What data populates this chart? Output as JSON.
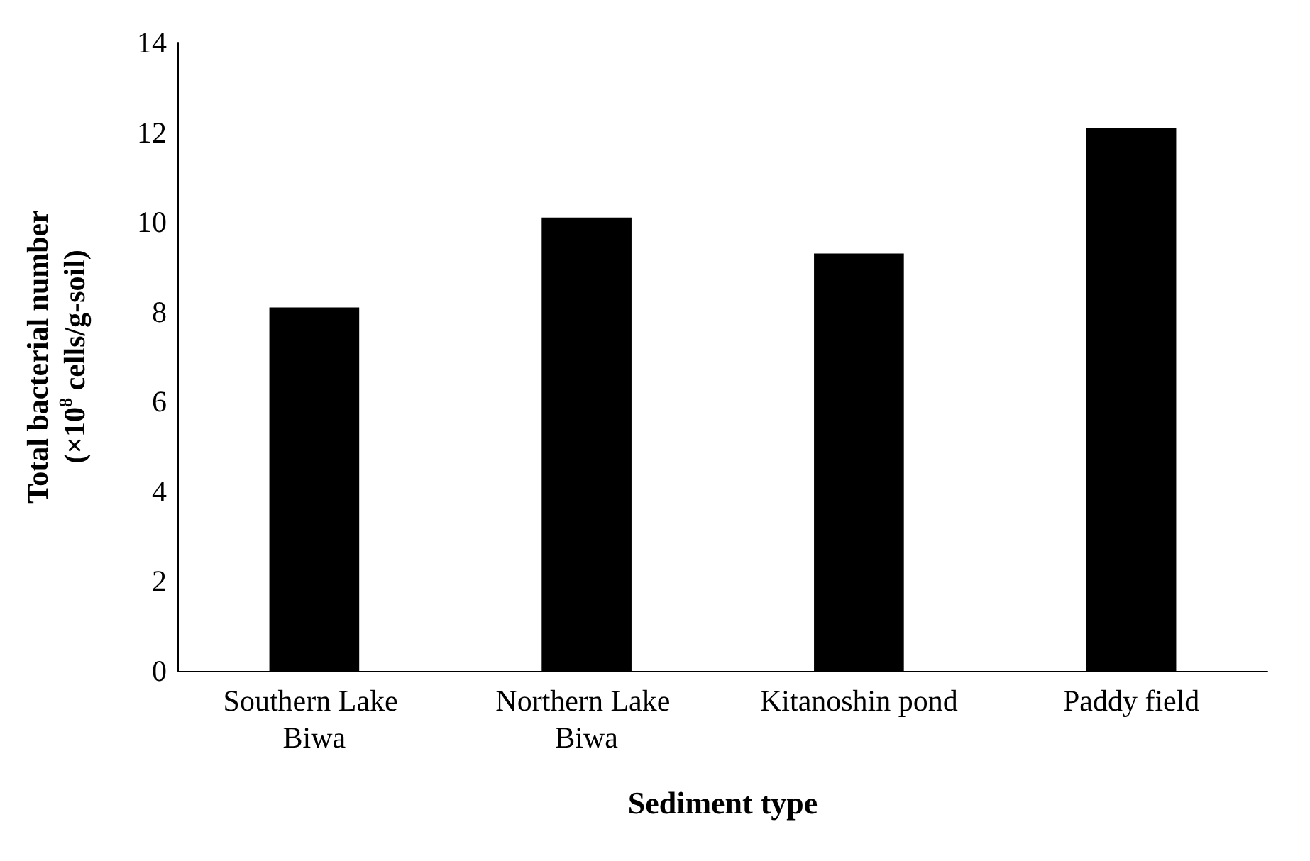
{
  "chart_data": {
    "type": "bar",
    "xlabel": "Sediment type",
    "ylabel": "Total bacterial number\n(×10$^{8}$ cells/g-soil)",
    "categories": [
      "Southern Lake Biwa",
      "Northern Lake Biwa",
      "Kitanoshin pond",
      "Paddy field"
    ],
    "values": [
      8.1,
      10.1,
      9.3,
      12.1
    ],
    "color": "#000000",
    "ylim": [
      0,
      14
    ],
    "yticks": [
      0,
      2,
      4,
      6,
      8,
      10,
      12,
      14
    ],
    "grid": false
  }
}
